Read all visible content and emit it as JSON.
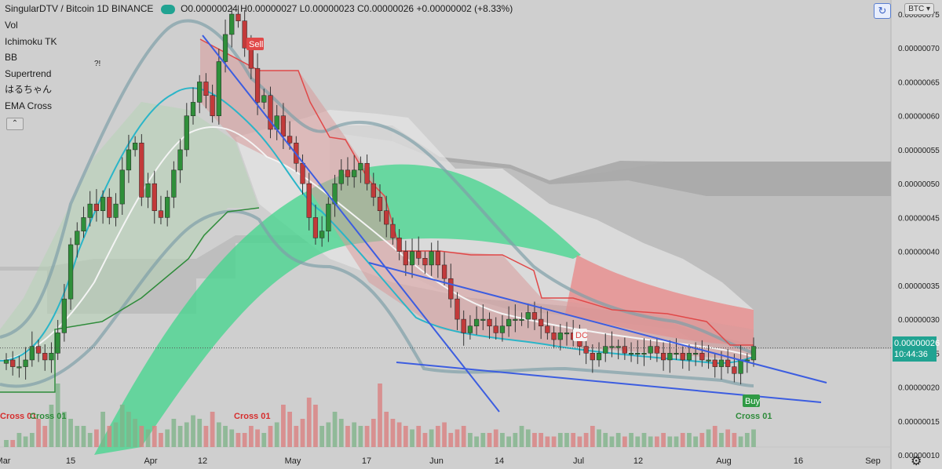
{
  "header": {
    "symbol": "SingularDTV / Bitcoin  1D  BINANCE",
    "open": "O0.00000024",
    "high": "H0.00000027",
    "low": "L0.00000023",
    "close": "C0.00000026",
    "change": "+0.00000002 (+8.33%)"
  },
  "indicators": [
    "Vol",
    "Ichimoku TK",
    "BB",
    "Supertrend",
    "はるちゃん",
    "EMA Cross"
  ],
  "currency_button": "BTC",
  "price_tag": {
    "price": "0.00000026",
    "countdown": "10:44:36"
  },
  "annotations": {
    "sell": "Sell",
    "buy": "Buy",
    "dc": "DC",
    "cross_left": "Cross 01",
    "cross_left2": "Cross 01",
    "cross_mid": "Cross 01",
    "cross_right": "Cross 01",
    "marker": "?!"
  },
  "chart_data": {
    "type": "candlestick",
    "title": "SingularDTV / Bitcoin 1D BINANCE",
    "y_axis": {
      "ticks": [
        1e-07,
        1.5e-07,
        2e-07,
        2.5e-07,
        3e-07,
        3.5e-07,
        4e-07,
        4.5e-07,
        5e-07,
        5.5e-07,
        6e-07,
        6.5e-07,
        7e-07,
        7.5e-07
      ],
      "tick_labels": [
        "0.00000010",
        "0.00000015",
        "0.00000020",
        "0.00000025",
        "0.00000030",
        "0.00000035",
        "0.00000040",
        "0.00000045",
        "0.00000050",
        "0.00000055",
        "0.00000060",
        "0.00000065",
        "0.00000070",
        "0.00000075"
      ],
      "range": [
        9.5e-08,
        7.68e-07
      ]
    },
    "x_axis": {
      "tick_labels": [
        "Mar",
        "15",
        "Apr",
        "12",
        "May",
        "17",
        "Jun",
        "14",
        "Jul",
        "12",
        "Aug",
        "16",
        "Sep"
      ]
    },
    "price_series_close": [
      0.24,
      0.23,
      0.23,
      0.24,
      0.26,
      0.25,
      0.24,
      0.25,
      0.28,
      0.33,
      0.41,
      0.43,
      0.45,
      0.47,
      0.46,
      0.48,
      0.45,
      0.47,
      0.52,
      0.55,
      0.56,
      0.48,
      0.5,
      0.46,
      0.45,
      0.48,
      0.52,
      0.55,
      0.6,
      0.62,
      0.65,
      0.63,
      0.6,
      0.68,
      0.72,
      0.75,
      0.74,
      0.7,
      0.67,
      0.62,
      0.63,
      0.58,
      0.6,
      0.57,
      0.56,
      0.53,
      0.5,
      0.45,
      0.42,
      0.43,
      0.47,
      0.5,
      0.52,
      0.51,
      0.52,
      0.53,
      0.5,
      0.48,
      0.46,
      0.44,
      0.42,
      0.4,
      0.38,
      0.4,
      0.39,
      0.38,
      0.4,
      0.38,
      0.36,
      0.33,
      0.3,
      0.28,
      0.29,
      0.3,
      0.3,
      0.29,
      0.28,
      0.29,
      0.3,
      0.3,
      0.3,
      0.31,
      0.3,
      0.29,
      0.28,
      0.27,
      0.28,
      0.28,
      0.27,
      0.26,
      0.25,
      0.24,
      0.25,
      0.26,
      0.26,
      0.26,
      0.25,
      0.25,
      0.25,
      0.25,
      0.26,
      0.25,
      0.24,
      0.25,
      0.25,
      0.24,
      0.25,
      0.25,
      0.24,
      0.24,
      0.23,
      0.24,
      0.23,
      0.22,
      0.24,
      0.24,
      0.26
    ],
    "volume_series": [
      0.1,
      0.1,
      0.2,
      0.15,
      0.2,
      0.4,
      0.3,
      0.6,
      0.9,
      0.5,
      0.4,
      0.3,
      0.3,
      0.2,
      0.25,
      0.5,
      0.3,
      0.35,
      0.6,
      0.5,
      0.4,
      0.3,
      0.25,
      0.3,
      0.2,
      0.25,
      0.4,
      0.3,
      0.35,
      0.45,
      0.4,
      0.3,
      0.5,
      0.35,
      0.3,
      0.25,
      0.2,
      0.2,
      0.3,
      0.25,
      0.2,
      0.3,
      0.35,
      0.6,
      0.5,
      0.3,
      0.4,
      0.7,
      0.6,
      0.3,
      0.35,
      0.5,
      0.4,
      0.3,
      0.35,
      0.3,
      0.3,
      0.4,
      0.9,
      0.5,
      0.4,
      0.35,
      0.3,
      0.25,
      0.3,
      0.2,
      0.25,
      0.3,
      0.35,
      0.2,
      0.25,
      0.3,
      0.2,
      0.15,
      0.2,
      0.2,
      0.25,
      0.2,
      0.15,
      0.2,
      0.3,
      0.25,
      0.2,
      0.2,
      0.15,
      0.15,
      0.2,
      0.2,
      0.2,
      0.15,
      0.2,
      0.3,
      0.25,
      0.2,
      0.15,
      0.2,
      0.15,
      0.2,
      0.15,
      0.2,
      0.15,
      0.15,
      0.2,
      0.15,
      0.15,
      0.2,
      0.2,
      0.15,
      0.2,
      0.25,
      0.3,
      0.2,
      0.25,
      0.2,
      0.15,
      0.2,
      0.25
    ],
    "last_price": 2.6e-07,
    "grid": false
  }
}
